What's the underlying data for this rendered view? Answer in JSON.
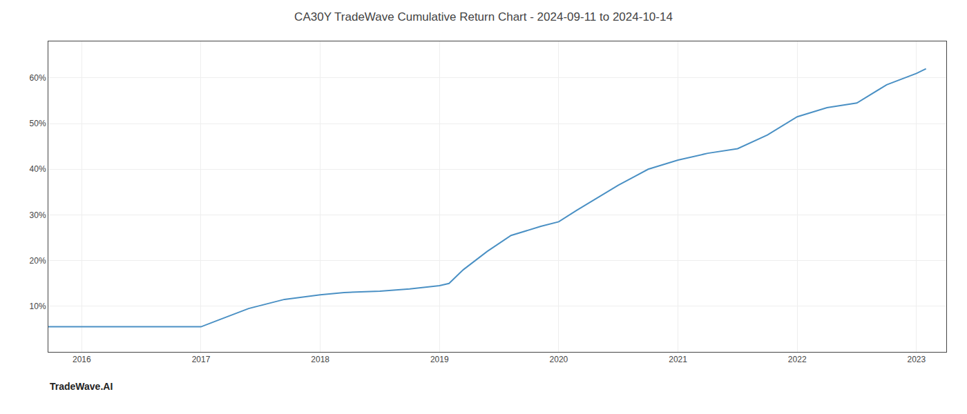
{
  "chart_data": {
    "type": "line",
    "title": "CA30Y TradeWave Cumulative Return Chart - 2024-09-11 to 2024-10-14",
    "annotations": [
      {
        "text": "TradeWave.AI"
      }
    ],
    "x": [
      2015.72,
      2016.0,
      2016.25,
      2016.5,
      2016.75,
      2017.0,
      2017.15,
      2017.4,
      2017.7,
      2018.0,
      2018.2,
      2018.5,
      2018.75,
      2019.0,
      2019.08,
      2019.2,
      2019.4,
      2019.6,
      2019.85,
      2020.0,
      2020.15,
      2020.5,
      2020.75,
      2021.0,
      2021.25,
      2021.5,
      2021.75,
      2022.0,
      2022.25,
      2022.5,
      2022.75,
      2023.0,
      2023.08
    ],
    "values": [
      5.5,
      5.5,
      5.5,
      5.5,
      5.5,
      5.5,
      7.0,
      9.5,
      11.5,
      12.5,
      13.0,
      13.3,
      13.8,
      14.5,
      15.0,
      18.0,
      22.0,
      25.5,
      27.5,
      28.5,
      31.0,
      36.5,
      40.0,
      42.0,
      43.5,
      44.5,
      47.5,
      51.5,
      53.5,
      54.5,
      58.5,
      61.0,
      62.0
    ],
    "color": "#4a90c4",
    "xlim": [
      2015.72,
      2023.25
    ],
    "ylim": [
      0,
      68
    ],
    "xticks": [
      2016,
      2017,
      2018,
      2019,
      2020,
      2021,
      2022,
      2023
    ],
    "yticks": [
      {
        "value": 10,
        "label": "10%"
      },
      {
        "value": 20,
        "label": "20%"
      },
      {
        "value": 30,
        "label": "30%"
      },
      {
        "value": 40,
        "label": "40%"
      },
      {
        "value": 50,
        "label": "50%"
      },
      {
        "value": 60,
        "label": "60%"
      }
    ],
    "grid": true
  }
}
